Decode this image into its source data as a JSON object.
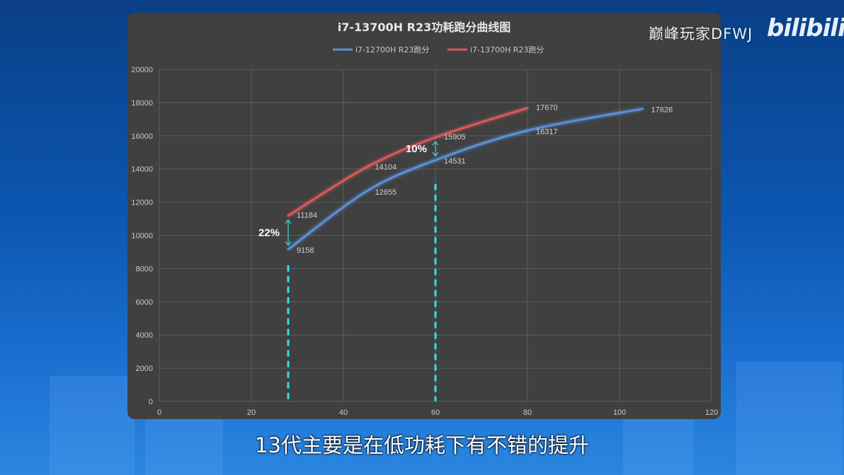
{
  "watermark": {
    "channel": "巅峰玩家DFWJ",
    "logo": "bilibili"
  },
  "subtitle": "13代主要是在低功耗下有不错的提升",
  "colors": {
    "blue_series": "#5b8fd6",
    "red_series": "#d65a5a",
    "panel": "#404040",
    "annotation": "#35e0e0"
  },
  "chart_data": {
    "type": "line",
    "title": "i7-13700H R23功耗跑分曲线图",
    "xlim": [
      0,
      120
    ],
    "ylim": [
      0,
      20000
    ],
    "x_ticks": [
      0,
      20,
      40,
      60,
      80,
      100,
      120
    ],
    "y_ticks": [
      0,
      2000,
      4000,
      6000,
      8000,
      10000,
      12000,
      14000,
      16000,
      18000,
      20000
    ],
    "grid": true,
    "legend": "top",
    "series": [
      {
        "name": "i7-12700H R23跑分",
        "color": "#5b8fd6",
        "x": [
          28,
          45,
          60,
          80,
          105
        ],
        "y": [
          9158,
          12655,
          14531,
          16317,
          17626
        ]
      },
      {
        "name": "i7-13700H R23跑分",
        "color": "#d65a5a",
        "x": [
          28,
          45,
          60,
          80
        ],
        "y": [
          11184,
          14104,
          15905,
          17670
        ]
      }
    ],
    "annotations": [
      {
        "text": "22%",
        "x": 28,
        "from": 9158,
        "to": 11184
      },
      {
        "text": "10%",
        "x": 60,
        "from": 14531,
        "to": 15905
      }
    ],
    "reference_lines": [
      {
        "x": 28,
        "y_top": 8200
      },
      {
        "x": 60,
        "y_top": 13100
      }
    ]
  }
}
